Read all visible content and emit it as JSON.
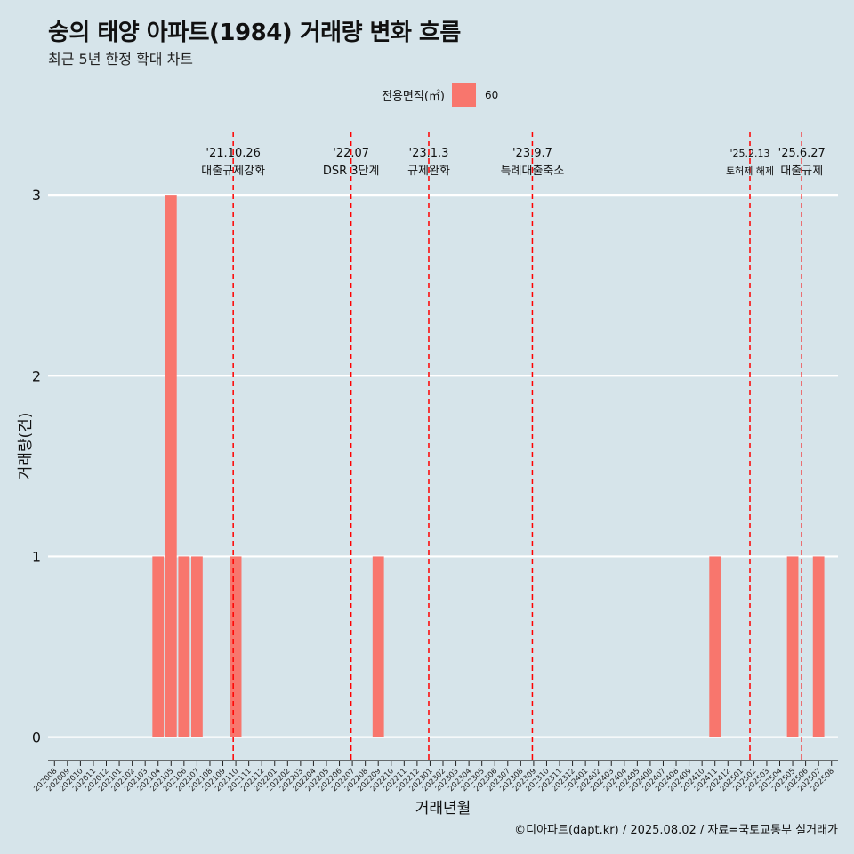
{
  "title": "숭의 태양 아파트(1984) 거래량 변화 흐름",
  "subtitle": "최근 5년 한정 확대 차트",
  "legend": {
    "title": "전용면적(㎡)",
    "entry": "60",
    "color": "#f8766d"
  },
  "caption": "©디아파트(dapt.kr) / 2025.08.02 / 자료=국토교통부 실거래가",
  "colors": {
    "background": "#d6e4ea",
    "bar": "#f8766d",
    "event_line": "#ff0000",
    "grid": "#ffffff"
  },
  "chart_data": {
    "type": "bar",
    "title": "숭의 태양 아파트(1984) 거래량 변화 흐름",
    "xlabel": "거래년월",
    "ylabel": "거래량(건)",
    "ylim": [
      -0.13,
      3.35
    ],
    "yticks": [
      0,
      1,
      2,
      3
    ],
    "categories": [
      "202008",
      "202009",
      "202010",
      "202011",
      "202012",
      "202101",
      "202102",
      "202103",
      "202104",
      "202105",
      "202106",
      "202107",
      "202108",
      "202109",
      "202110",
      "202111",
      "202112",
      "202201",
      "202202",
      "202203",
      "202204",
      "202205",
      "202206",
      "202207",
      "202208",
      "202209",
      "202210",
      "202211",
      "202212",
      "202301",
      "202302",
      "202303",
      "202304",
      "202305",
      "202306",
      "202307",
      "202308",
      "202309",
      "202310",
      "202311",
      "202312",
      "202401",
      "202402",
      "202403",
      "202404",
      "202405",
      "202406",
      "202407",
      "202408",
      "202409",
      "202410",
      "202411",
      "202412",
      "202501",
      "202502",
      "202503",
      "202504",
      "202505",
      "202506",
      "202507",
      "202508"
    ],
    "series": [
      {
        "name": "60",
        "values": [
          0,
          0,
          0,
          0,
          0,
          0,
          0,
          0,
          1,
          3,
          1,
          1,
          0,
          0,
          1,
          0,
          0,
          0,
          0,
          0,
          0,
          0,
          0,
          0,
          0,
          1,
          0,
          0,
          0,
          0,
          0,
          0,
          0,
          0,
          0,
          0,
          0,
          0,
          0,
          0,
          0,
          0,
          0,
          0,
          0,
          0,
          0,
          0,
          0,
          0,
          0,
          1,
          0,
          0,
          0,
          0,
          0,
          1,
          0,
          1,
          0
        ]
      }
    ],
    "events": [
      {
        "date": "'21.10.26",
        "label": "대출규제강화",
        "at": 14.3
      },
      {
        "date": "'22.07",
        "label": "DSR 3단계",
        "at": 23.4
      },
      {
        "date": "'23.1.3",
        "label": "규제완화",
        "at": 29.4
      },
      {
        "date": "'23.9.7",
        "label": "특례대출축소",
        "at": 37.4
      },
      {
        "date": "'25.2.13",
        "label": "토허제 해제",
        "at": 54.2
      },
      {
        "date": "'25.6.27",
        "label": "대출규제",
        "at": 58.2
      }
    ]
  }
}
